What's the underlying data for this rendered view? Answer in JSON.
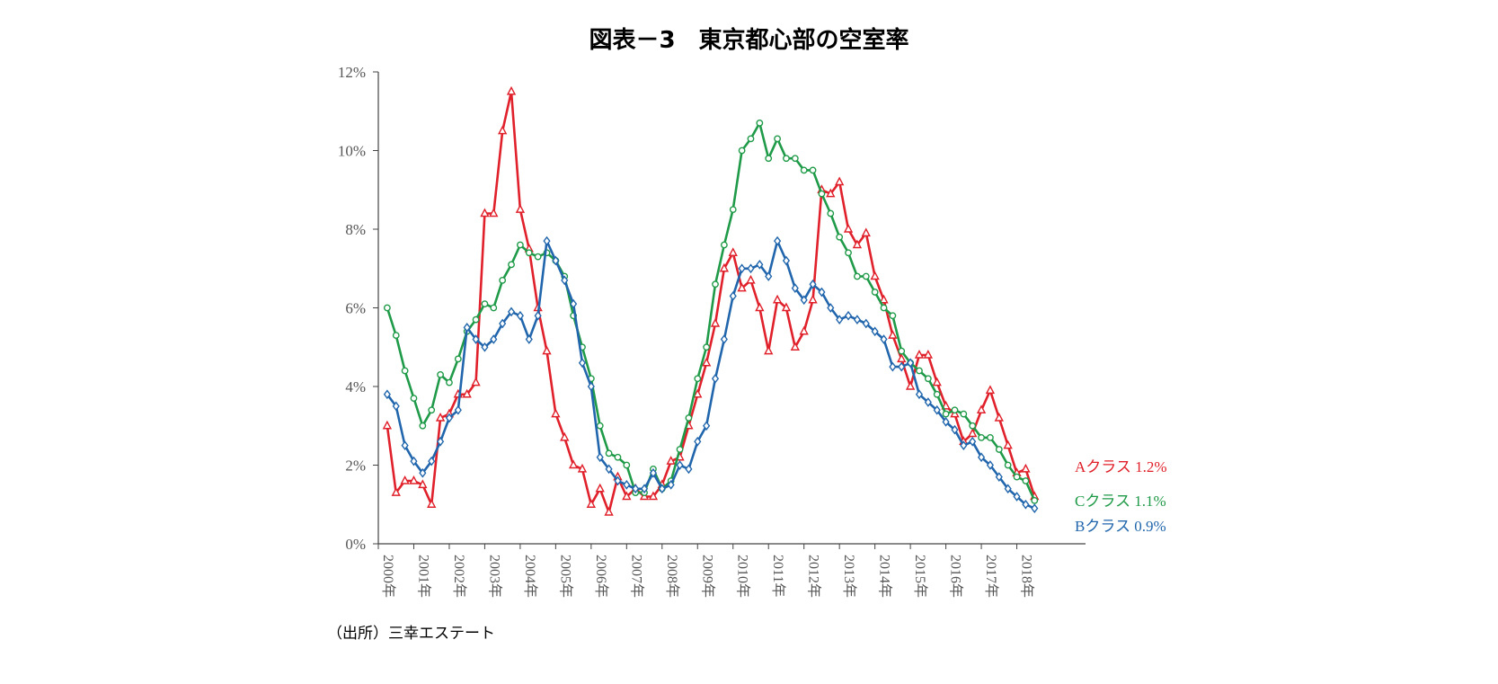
{
  "title": "図表－3　東京都心部の空室率",
  "source": "（出所）三幸エステート",
  "chart_data": {
    "type": "line",
    "title": "図表－3　東京都心部の空室率",
    "ylim": [
      0,
      12
    ],
    "xlim": [
      2000.0,
      2019.0
    ],
    "y_ticks": [
      "0%",
      "2%",
      "4%",
      "6%",
      "8%",
      "10%",
      "12%"
    ],
    "x_ticks": [
      "2000年",
      "2001年",
      "2002年",
      "2003年",
      "2004年",
      "2005年",
      "2006年",
      "2007年",
      "2008年",
      "2009年",
      "2010年",
      "2011年",
      "2012年",
      "2013年",
      "2014年",
      "2015年",
      "2016年",
      "2017年",
      "2018年"
    ],
    "grid": false,
    "legend": "end-of-line labels",
    "series": [
      {
        "name": "Aクラス",
        "end_label": "Aクラス 1.2%",
        "color": "#e0202a",
        "marker": "triangle",
        "x": [
          2000.25,
          2000.5,
          2000.75,
          2001.0,
          2001.25,
          2001.5,
          2001.75,
          2002.0,
          2002.25,
          2002.5,
          2002.75,
          2003.0,
          2003.25,
          2003.5,
          2003.75,
          2004.0,
          2004.25,
          2004.5,
          2004.75,
          2005.0,
          2005.25,
          2005.5,
          2005.75,
          2006.0,
          2006.25,
          2006.5,
          2006.75,
          2007.0,
          2007.25,
          2007.5,
          2007.75,
          2008.0,
          2008.25,
          2008.5,
          2008.75,
          2009.0,
          2009.25,
          2009.5,
          2009.75,
          2010.0,
          2010.25,
          2010.5,
          2010.75,
          2011.0,
          2011.25,
          2011.5,
          2011.75,
          2012.0,
          2012.25,
          2012.5,
          2012.75,
          2013.0,
          2013.25,
          2013.5,
          2013.75,
          2014.0,
          2014.25,
          2014.5,
          2014.75,
          2015.0,
          2015.25,
          2015.5,
          2015.75,
          2016.0,
          2016.25,
          2016.5,
          2016.75,
          2017.0,
          2017.25,
          2017.5,
          2017.75,
          2018.0,
          2018.25,
          2018.5
        ],
        "values": [
          3.0,
          1.3,
          1.6,
          1.6,
          1.5,
          1.0,
          3.2,
          3.3,
          3.8,
          3.8,
          4.1,
          8.4,
          8.4,
          10.5,
          11.5,
          8.5,
          7.5,
          6.0,
          4.9,
          3.3,
          2.7,
          2.0,
          1.9,
          1.0,
          1.4,
          0.8,
          1.7,
          1.2,
          1.4,
          1.2,
          1.2,
          1.5,
          2.1,
          2.2,
          3.0,
          3.8,
          4.6,
          5.6,
          7.0,
          7.4,
          6.5,
          6.7,
          6.0,
          4.9,
          6.2,
          6.0,
          5.0,
          5.4,
          6.2,
          9.0,
          8.9,
          9.2,
          8.0,
          7.6,
          7.9,
          6.8,
          6.2,
          5.3,
          4.7,
          4.0,
          4.8,
          4.8,
          4.1,
          3.5,
          3.3,
          2.6,
          2.8,
          3.4,
          3.9,
          3.2,
          2.5,
          1.8,
          1.9,
          1.2
        ]
      },
      {
        "name": "Cクラス",
        "end_label": "Cクラス 1.1%",
        "color": "#1f9a48",
        "marker": "circle",
        "x": [
          2000.25,
          2000.5,
          2000.75,
          2001.0,
          2001.25,
          2001.5,
          2001.75,
          2002.0,
          2002.25,
          2002.5,
          2002.75,
          2003.0,
          2003.25,
          2003.5,
          2003.75,
          2004.0,
          2004.25,
          2004.5,
          2004.75,
          2005.0,
          2005.25,
          2005.5,
          2005.75,
          2006.0,
          2006.25,
          2006.5,
          2006.75,
          2007.0,
          2007.25,
          2007.5,
          2007.75,
          2008.0,
          2008.25,
          2008.5,
          2008.75,
          2009.0,
          2009.25,
          2009.5,
          2009.75,
          2010.0,
          2010.25,
          2010.5,
          2010.75,
          2011.0,
          2011.25,
          2011.5,
          2011.75,
          2012.0,
          2012.25,
          2012.5,
          2012.75,
          2013.0,
          2013.25,
          2013.5,
          2013.75,
          2014.0,
          2014.25,
          2014.5,
          2014.75,
          2015.0,
          2015.25,
          2015.5,
          2015.75,
          2016.0,
          2016.25,
          2016.5,
          2016.75,
          2017.0,
          2017.25,
          2017.5,
          2017.75,
          2018.0,
          2018.25,
          2018.5
        ],
        "values": [
          6.0,
          5.3,
          4.4,
          3.7,
          3.0,
          3.4,
          4.3,
          4.1,
          4.7,
          5.4,
          5.7,
          6.1,
          6.0,
          6.7,
          7.1,
          7.6,
          7.4,
          7.3,
          7.4,
          7.2,
          6.8,
          5.8,
          5.0,
          4.2,
          3.0,
          2.3,
          2.2,
          2.0,
          1.3,
          1.3,
          1.9,
          1.4,
          1.6,
          2.4,
          3.2,
          4.2,
          5.0,
          6.6,
          7.6,
          8.5,
          10.0,
          10.3,
          10.7,
          9.8,
          10.3,
          9.8,
          9.8,
          9.5,
          9.5,
          8.9,
          8.4,
          7.8,
          7.4,
          6.8,
          6.8,
          6.4,
          6.0,
          5.8,
          4.9,
          4.6,
          4.4,
          4.2,
          3.8,
          3.3,
          3.4,
          3.3,
          3.0,
          2.7,
          2.7,
          2.4,
          2.0,
          1.7,
          1.6,
          1.1
        ]
      },
      {
        "name": "Bクラス",
        "end_label": "Bクラス 0.9%",
        "color": "#2166ac",
        "marker": "diamond",
        "x": [
          2000.25,
          2000.5,
          2000.75,
          2001.0,
          2001.25,
          2001.5,
          2001.75,
          2002.0,
          2002.25,
          2002.5,
          2002.75,
          2003.0,
          2003.25,
          2003.5,
          2003.75,
          2004.0,
          2004.25,
          2004.5,
          2004.75,
          2005.0,
          2005.25,
          2005.5,
          2005.75,
          2006.0,
          2006.25,
          2006.5,
          2006.75,
          2007.0,
          2007.25,
          2007.5,
          2007.75,
          2008.0,
          2008.25,
          2008.5,
          2008.75,
          2009.0,
          2009.25,
          2009.5,
          2009.75,
          2010.0,
          2010.25,
          2010.5,
          2010.75,
          2011.0,
          2011.25,
          2011.5,
          2011.75,
          2012.0,
          2012.25,
          2012.5,
          2012.75,
          2013.0,
          2013.25,
          2013.5,
          2013.75,
          2014.0,
          2014.25,
          2014.5,
          2014.75,
          2015.0,
          2015.25,
          2015.5,
          2015.75,
          2016.0,
          2016.25,
          2016.5,
          2016.75,
          2017.0,
          2017.25,
          2017.5,
          2017.75,
          2018.0,
          2018.25,
          2018.5
        ],
        "values": [
          3.8,
          3.5,
          2.5,
          2.1,
          1.8,
          2.1,
          2.6,
          3.2,
          3.4,
          5.5,
          5.2,
          5.0,
          5.2,
          5.6,
          5.9,
          5.8,
          5.2,
          5.8,
          7.7,
          7.2,
          6.7,
          6.1,
          4.6,
          4.0,
          2.2,
          1.9,
          1.6,
          1.5,
          1.4,
          1.4,
          1.8,
          1.4,
          1.5,
          2.0,
          1.9,
          2.6,
          3.0,
          4.2,
          5.2,
          6.3,
          7.0,
          7.0,
          7.1,
          6.8,
          7.7,
          7.2,
          6.5,
          6.2,
          6.6,
          6.4,
          6.0,
          5.7,
          5.8,
          5.7,
          5.6,
          5.4,
          5.2,
          4.5,
          4.5,
          4.6,
          3.8,
          3.6,
          3.4,
          3.1,
          2.9,
          2.5,
          2.6,
          2.2,
          2.0,
          1.7,
          1.4,
          1.2,
          1.0,
          0.9
        ]
      }
    ]
  }
}
